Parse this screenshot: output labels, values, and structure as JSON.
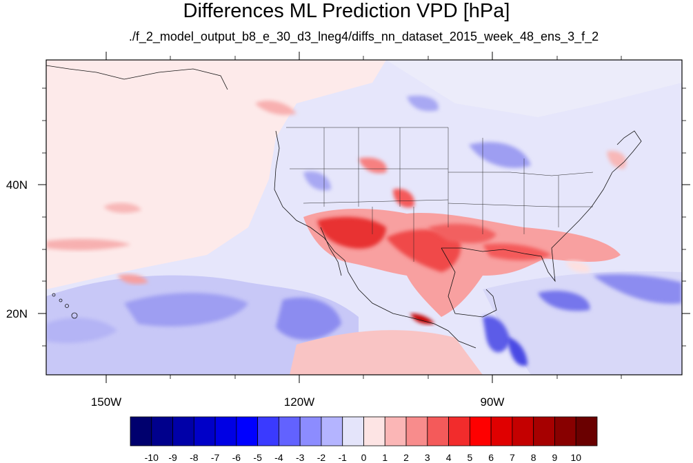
{
  "title": "Differences ML Prediction VPD [hPa]",
  "subtitle": "./f_2_model_output_b8_e_30_d3_lneg4/diffs_nn_dataset_2015_week_48_ens_3_f_2",
  "map": {
    "lon_labels": [
      "150W",
      "120W",
      "90W"
    ],
    "lat_labels": [
      "40N",
      "20N"
    ]
  },
  "colorbar": {
    "labels": [
      "-10",
      "-9",
      "-8",
      "-7",
      "-6",
      "-5",
      "-4",
      "-3",
      "-2",
      "-1",
      "0",
      "1",
      "2",
      "3",
      "4",
      "5",
      "6",
      "7",
      "8",
      "9",
      "10"
    ],
    "colors": [
      "#00006e",
      "#00008c",
      "#0000a8",
      "#0000c8",
      "#0000e4",
      "#0000ff",
      "#3a3aff",
      "#6262ff",
      "#8c8cff",
      "#b4b4ff",
      "#e4e4fa",
      "#fde4e4",
      "#fbb6b6",
      "#f88c8c",
      "#f45a5a",
      "#f22c2c",
      "#fe0000",
      "#e00000",
      "#c40000",
      "#a60000",
      "#880000",
      "#6a0000"
    ]
  }
}
